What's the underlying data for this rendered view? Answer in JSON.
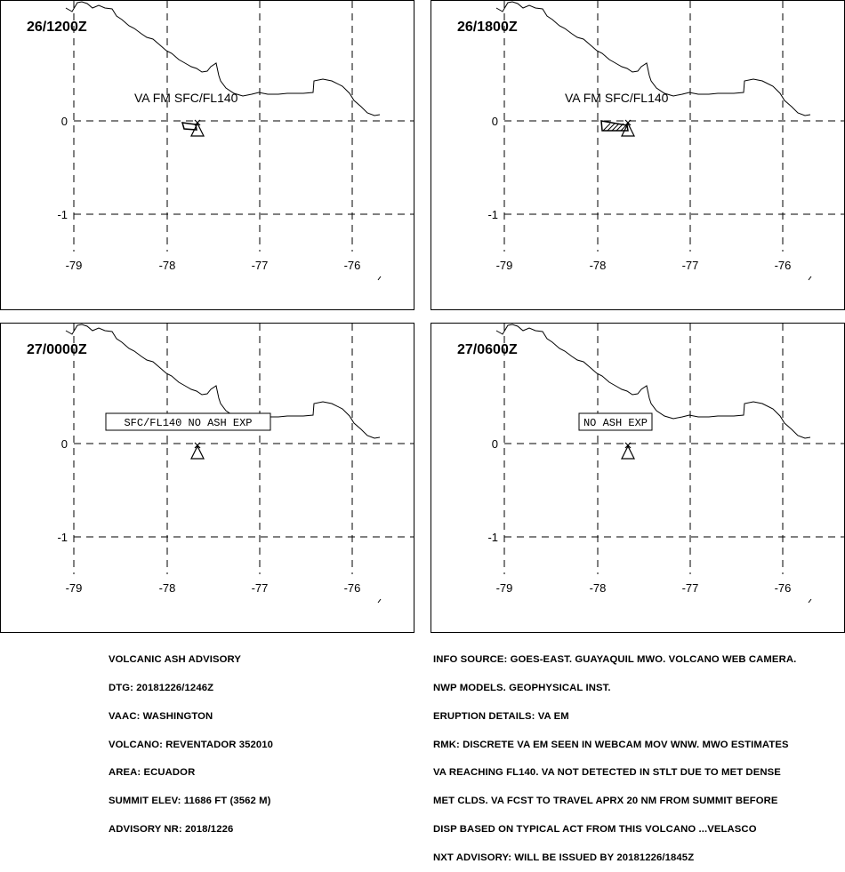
{
  "axes": {
    "longitudes": [
      "-79",
      "-78",
      "-77",
      "-76"
    ],
    "latitudes": [
      "0",
      "-1"
    ]
  },
  "panels": [
    {
      "time": "26/1200Z",
      "label": "VA FM SFC/FL140",
      "boxed": false,
      "plume": "small"
    },
    {
      "time": "26/1800Z",
      "label": "VA FM SFC/FL140",
      "boxed": false,
      "plume": "large"
    },
    {
      "time": "27/0000Z",
      "label": "SFC/FL140 NO ASH EXP",
      "boxed": true,
      "plume": "none"
    },
    {
      "time": "27/0600Z",
      "label": "NO ASH EXP",
      "boxed": true,
      "plume": "none"
    }
  ],
  "advisory_left": [
    "VOLCANIC ASH ADVISORY",
    "DTG: 20181226/1246Z",
    "VAAC: WASHINGTON",
    "VOLCANO: REVENTADOR 352010",
    "AREA: ECUADOR",
    "SUMMIT ELEV: 11686 FT (3562 M)",
    "ADVISORY NR: 2018/1226"
  ],
  "advisory_right": [
    "INFO SOURCE: GOES-EAST. GUAYAQUIL MWO. VOLCANO WEB CAMERA.",
    "NWP MODELS. GEOPHYSICAL INST.",
    "ERUPTION DETAILS: VA EM",
    "RMK: DISCRETE VA EM SEEN IN WEBCAM MOV WNW. MWO ESTIMATES",
    "VA REACHING FL140. VA NOT DETECTED IN STLT DUE TO MET DENSE",
    "MET CLDS. VA FCST TO TRAVEL APRX 20 NM FROM SUMMIT BEFORE",
    "DISP BASED ON TYPICAL ACT FROM THIS VOLCANO ...VELASCO",
    "NXT ADVISORY: WILL BE ISSUED BY 20181226/1845Z"
  ]
}
